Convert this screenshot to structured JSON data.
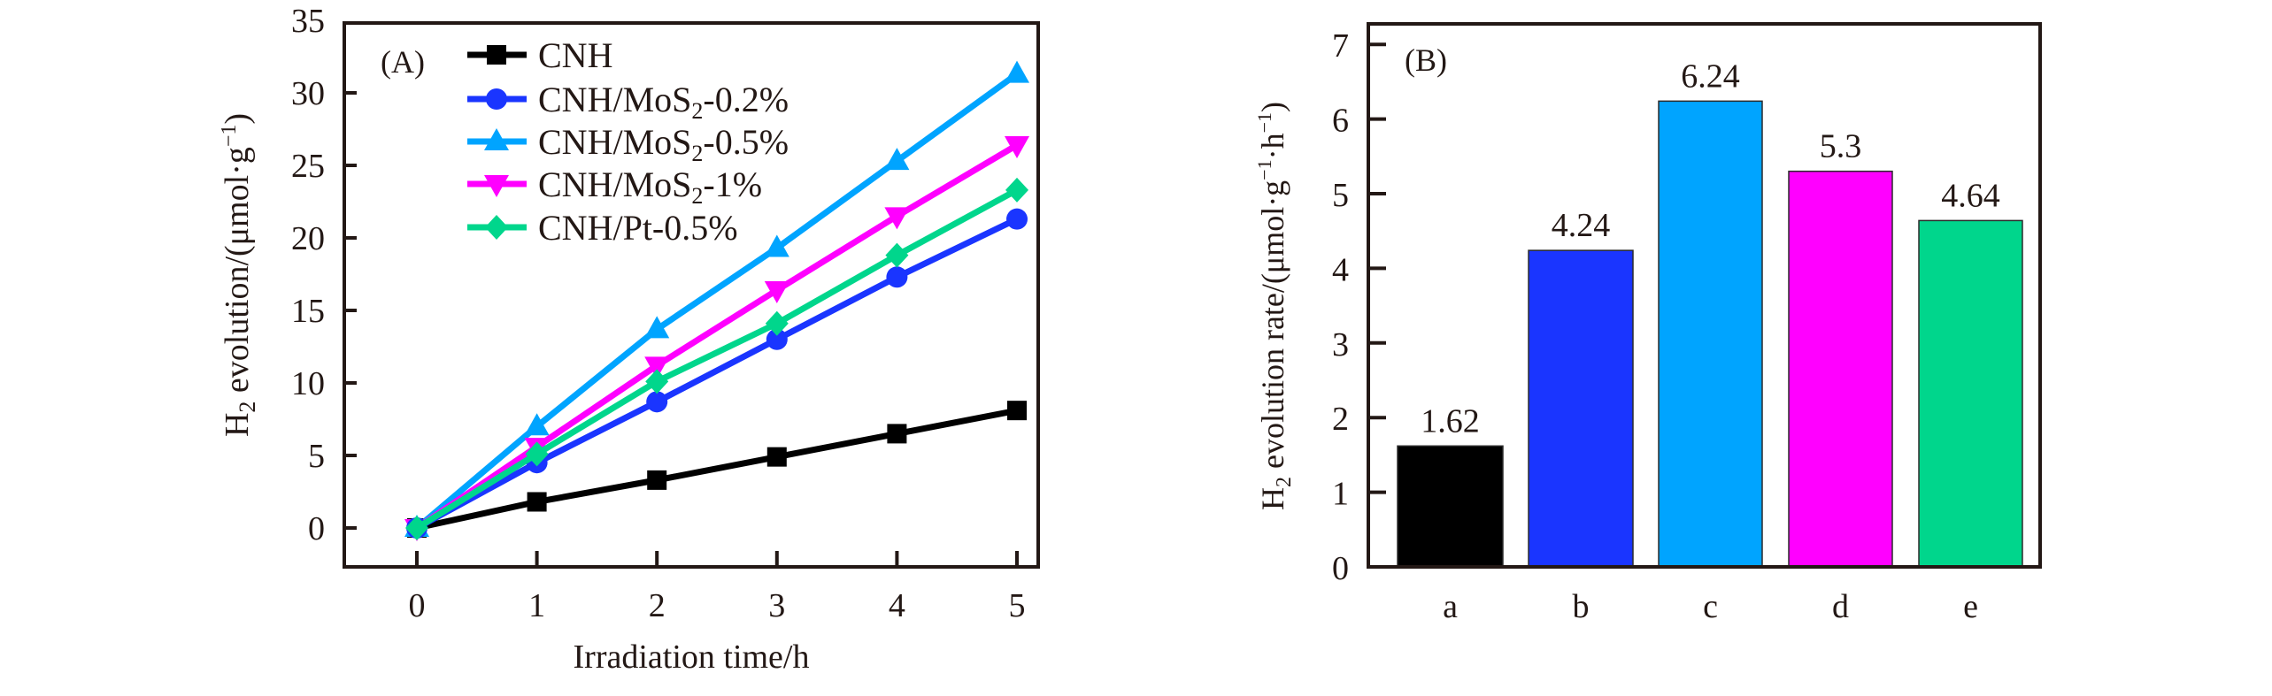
{
  "chart_data": [
    {
      "type": "line",
      "panel_label": "(A)",
      "title": "",
      "xlabel": "Irradiation time/h",
      "ylabel_parts": {
        "main": "H",
        "sub": "2",
        "rest": " evolution/(μmol·g",
        "sup": "−1",
        "end": ")"
      },
      "ylabel": "H2 evolution/(μmol·g−1)",
      "x": [
        0,
        1,
        2,
        3,
        4,
        5
      ],
      "xlim": [
        -0.6,
        5.3
      ],
      "ylim": [
        -3,
        35
      ],
      "xticks": [
        0,
        1,
        2,
        3,
        4,
        5
      ],
      "yticks": [
        0,
        5,
        10,
        15,
        20,
        25,
        30,
        35
      ],
      "grid": false,
      "legend_position": "top-left",
      "series": [
        {
          "name": "CNH",
          "name_parts": [
            "CNH",
            "",
            ""
          ],
          "marker": "square",
          "color": "#000000",
          "values": [
            0,
            1.8,
            3.3,
            4.9,
            6.5,
            8.1
          ]
        },
        {
          "name": "CNH/MoS2-0.2%",
          "name_parts": [
            "CNH/MoS",
            "2",
            "-0.2%"
          ],
          "marker": "circle",
          "color": "#1a35ff",
          "values": [
            0,
            4.5,
            8.7,
            13.0,
            17.3,
            21.3
          ]
        },
        {
          "name": "CNH/MoS2-0.5%",
          "name_parts": [
            "CNH/MoS",
            "2",
            "-0.5%"
          ],
          "marker": "triangle-up",
          "color": "#00a4ff",
          "values": [
            0,
            7.0,
            13.7,
            19.3,
            25.3,
            31.3
          ]
        },
        {
          "name": "CNH/MoS2-1%",
          "name_parts": [
            "CNH/MoS",
            "2",
            "-1%"
          ],
          "marker": "triangle-down",
          "color": "#ff00ff",
          "values": [
            0,
            5.6,
            11.2,
            16.4,
            21.5,
            26.4
          ]
        },
        {
          "name": "CNH/Pt-0.5%",
          "name_parts": [
            "CNH/Pt-0.5%",
            "",
            ""
          ],
          "marker": "diamond",
          "color": "#00d68c",
          "values": [
            0,
            5.1,
            10.1,
            14.1,
            18.8,
            23.3
          ]
        }
      ]
    },
    {
      "type": "bar",
      "panel_label": "(B)",
      "title": "",
      "xlabel": "",
      "ylabel_parts": {
        "main": "H",
        "sub": "2",
        "rest": " evolution rate/(μmol·g",
        "sup": "−1",
        "mid": "·h",
        "sup2": "−1",
        "end": ")"
      },
      "ylabel": "H2 evolution rate/(μmol·g−1·h−1)",
      "categories": [
        "a",
        "b",
        "c",
        "d",
        "e"
      ],
      "values": [
        1.62,
        4.24,
        6.24,
        5.3,
        4.64
      ],
      "data_labels": [
        "1.62",
        "4.24",
        "6.24",
        "5.3",
        "4.64"
      ],
      "colors": [
        "#000000",
        "#1a35ff",
        "#00a4ff",
        "#ff00ff",
        "#00d68c"
      ],
      "ylim": [
        0,
        7.3
      ],
      "yticks": [
        0,
        1,
        2,
        3,
        4,
        5,
        6,
        7
      ],
      "grid": false,
      "legend_position": "none"
    }
  ]
}
